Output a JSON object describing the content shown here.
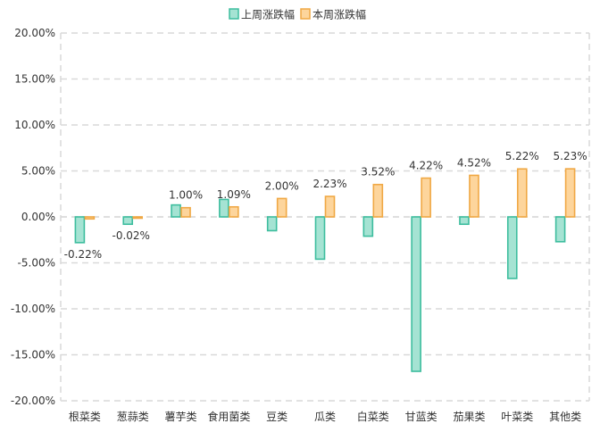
{
  "chart_data": {
    "type": "bar",
    "title": "",
    "xlabel": "",
    "ylabel": "",
    "categories": [
      "根菜类",
      "葱蒜类",
      "薯芋类",
      "食用菌类",
      "豆类",
      "瓜类",
      "白菜类",
      "甘蓝类",
      "茄果类",
      "叶菜类",
      "其他类"
    ],
    "series": [
      {
        "name": "上周涨跌幅",
        "values": [
          -2.8,
          -0.8,
          1.3,
          1.9,
          -1.5,
          -4.6,
          -2.1,
          -16.8,
          -0.8,
          -6.7,
          -2.7
        ],
        "color": "#3dbd9e",
        "fill": "#a5e3d3"
      },
      {
        "name": "本周涨跌幅",
        "values": [
          -0.22,
          -0.02,
          1.0,
          1.09,
          2.0,
          2.23,
          3.52,
          4.22,
          4.52,
          5.22,
          5.23
        ],
        "data_labels": [
          "-0.22%",
          "-0.02%",
          "1.00%",
          "1.09%",
          "2.00%",
          "2.23%",
          "3.52%",
          "4.22%",
          "4.52%",
          "5.22%",
          "5.23%"
        ],
        "color": "#f0a844",
        "fill": "#fdd59c"
      }
    ],
    "ylim": [
      -20,
      20
    ],
    "yticks": [
      "20.00%",
      "15.00%",
      "10.00%",
      "5.00%",
      "0.00%",
      "-5.00%",
      "-10.00%",
      "-15.00%",
      "-20.00%"
    ],
    "ytick_values": [
      20,
      15,
      10,
      5,
      0,
      -5,
      -10,
      -15,
      -20
    ],
    "grid": true,
    "legend_position": "top-center"
  }
}
